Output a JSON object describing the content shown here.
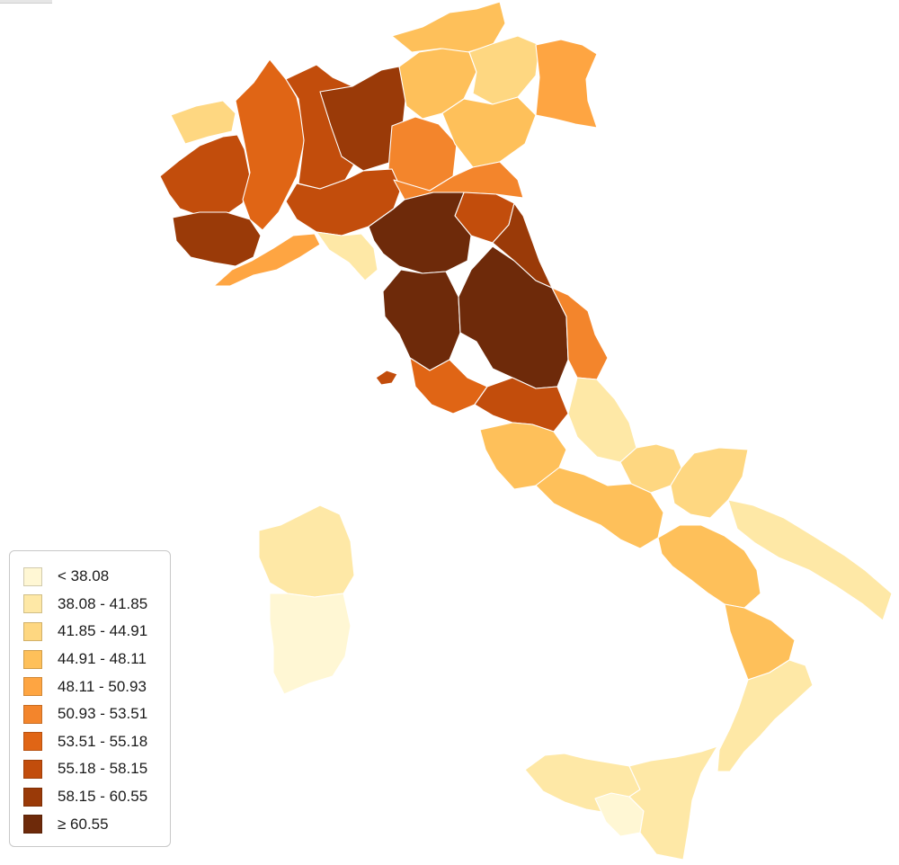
{
  "legend": {
    "classes": [
      {
        "label": "< 38.08",
        "color": "#fff7d4"
      },
      {
        "label": "38.08 - 41.85",
        "color": "#fee8a6"
      },
      {
        "label": "41.85 - 44.91",
        "color": "#fed781"
      },
      {
        "label": "44.91 - 48.11",
        "color": "#fec05a"
      },
      {
        "label": "48.11 - 50.93",
        "color": "#fea542"
      },
      {
        "label": "50.93 - 53.51",
        "color": "#f3852c"
      },
      {
        "label": "53.51 - 55.18",
        "color": "#e06515"
      },
      {
        "label": "55.18 - 58.15",
        "color": "#c24d0c"
      },
      {
        "label": "58.15 - 60.55",
        "color": "#9a3a08"
      },
      {
        "label": "≥ 60.55",
        "color": "#6e2a0a"
      }
    ]
  },
  "map": {
    "regions": [
      {
        "name": "aosta",
        "class": 2
      },
      {
        "name": "piedmont-west",
        "class": 7
      },
      {
        "name": "piedmont-south",
        "class": 8
      },
      {
        "name": "piedmont-east",
        "class": 6
      },
      {
        "name": "lombardy-west",
        "class": 7
      },
      {
        "name": "lombardy-north",
        "class": 8
      },
      {
        "name": "lombardy-east",
        "class": 5
      },
      {
        "name": "trentino",
        "class": 3
      },
      {
        "name": "alto-adige",
        "class": 3
      },
      {
        "name": "veneto-north",
        "class": 2
      },
      {
        "name": "veneto-south",
        "class": 3
      },
      {
        "name": "friuli",
        "class": 4
      },
      {
        "name": "emilia-west",
        "class": 7
      },
      {
        "name": "emilia-east",
        "class": 5
      },
      {
        "name": "romagna",
        "class": 7
      },
      {
        "name": "liguria-west",
        "class": 4
      },
      {
        "name": "liguria-east",
        "class": 1
      },
      {
        "name": "tuscany-north",
        "class": 9
      },
      {
        "name": "tuscany-south",
        "class": 9
      },
      {
        "name": "tuscany-coast",
        "class": 6
      },
      {
        "name": "umbria",
        "class": 9
      },
      {
        "name": "marche-north",
        "class": 8
      },
      {
        "name": "marche-south",
        "class": 5
      },
      {
        "name": "abruzzo",
        "class": 1
      },
      {
        "name": "lazio-north",
        "class": 7
      },
      {
        "name": "lazio-south",
        "class": 3
      },
      {
        "name": "molise",
        "class": 2
      },
      {
        "name": "campania",
        "class": 3
      },
      {
        "name": "puglia-north",
        "class": 2
      },
      {
        "name": "puglia-south",
        "class": 1
      },
      {
        "name": "basilicata",
        "class": 3
      },
      {
        "name": "calabria-north",
        "class": 3
      },
      {
        "name": "calabria-south",
        "class": 1
      },
      {
        "name": "sicily-west",
        "class": 1
      },
      {
        "name": "sicily-center",
        "class": 0
      },
      {
        "name": "sicily-east",
        "class": 1
      },
      {
        "name": "sardinia-north",
        "class": 1
      },
      {
        "name": "sardinia-south",
        "class": 0
      },
      {
        "name": "elba",
        "class": 7
      }
    ]
  }
}
